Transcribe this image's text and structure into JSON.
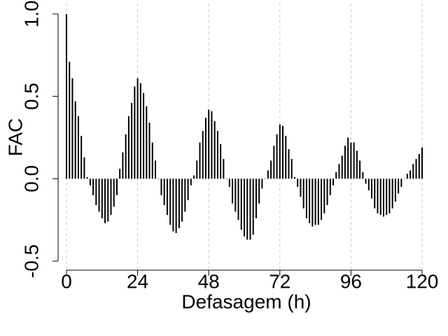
{
  "chart_data": {
    "type": "bar",
    "x_label": "Defasagem (h)",
    "y_label": "FAC",
    "color": "#000000",
    "grid": true,
    "x": [
      0,
      1,
      2,
      3,
      4,
      5,
      6,
      7,
      8,
      9,
      10,
      11,
      12,
      13,
      14,
      15,
      16,
      17,
      18,
      19,
      20,
      21,
      22,
      23,
      24,
      25,
      26,
      27,
      28,
      29,
      30,
      31,
      32,
      33,
      34,
      35,
      36,
      37,
      38,
      39,
      40,
      41,
      42,
      43,
      44,
      45,
      46,
      47,
      48,
      49,
      50,
      51,
      52,
      53,
      54,
      55,
      56,
      57,
      58,
      59,
      60,
      61,
      62,
      63,
      64,
      65,
      66,
      67,
      68,
      69,
      70,
      71,
      72,
      73,
      74,
      75,
      76,
      77,
      78,
      79,
      80,
      81,
      82,
      83,
      84,
      85,
      86,
      87,
      88,
      89,
      90,
      91,
      92,
      93,
      94,
      95,
      96,
      97,
      98,
      99,
      100,
      101,
      102,
      103,
      104,
      105,
      106,
      107,
      108,
      109,
      110,
      111,
      112,
      113,
      114,
      115,
      116,
      117,
      118,
      119,
      120
    ],
    "values": [
      1.0,
      0.71,
      0.61,
      0.47,
      0.38,
      0.26,
      0.13,
      0.01,
      -0.04,
      -0.1,
      -0.16,
      -0.2,
      -0.24,
      -0.27,
      -0.26,
      -0.22,
      -0.17,
      -0.1,
      0.06,
      0.16,
      0.27,
      0.38,
      0.46,
      0.56,
      0.61,
      0.58,
      0.52,
      0.44,
      0.34,
      0.22,
      0.11,
      0.0,
      -0.1,
      -0.16,
      -0.22,
      -0.28,
      -0.32,
      -0.33,
      -0.3,
      -0.26,
      -0.2,
      -0.13,
      -0.04,
      0.02,
      0.11,
      0.22,
      0.29,
      0.37,
      0.42,
      0.41,
      0.35,
      0.29,
      0.21,
      0.12,
      0.0,
      -0.05,
      -0.15,
      -0.2,
      -0.25,
      -0.31,
      -0.35,
      -0.37,
      -0.37,
      -0.34,
      -0.24,
      -0.15,
      -0.06,
      0.0,
      0.05,
      0.11,
      0.2,
      0.27,
      0.33,
      0.32,
      0.26,
      0.18,
      0.12,
      0.01,
      -0.05,
      -0.11,
      -0.18,
      -0.24,
      -0.27,
      -0.29,
      -0.28,
      -0.28,
      -0.25,
      -0.21,
      -0.16,
      -0.1,
      -0.04,
      0.04,
      0.09,
      0.14,
      0.2,
      0.25,
      0.22,
      0.22,
      0.17,
      0.11,
      0.04,
      -0.03,
      -0.07,
      -0.12,
      -0.18,
      -0.21,
      -0.22,
      -0.23,
      -0.22,
      -0.21,
      -0.18,
      -0.14,
      -0.09,
      -0.05,
      0.0,
      0.03,
      0.05,
      0.09,
      0.12,
      0.15,
      0.19
    ],
    "xlim": [
      0,
      120
    ],
    "xticks": [
      0,
      24,
      48,
      72,
      96,
      120
    ],
    "ylim": [
      -0.5,
      1.0
    ],
    "yticks": [
      {
        "value": -0.5,
        "label": "-0.5"
      },
      {
        "value": 0,
        "label": "0.0"
      },
      {
        "value": 0.5,
        "label": "0.5"
      },
      {
        "value": 1,
        "label": "1.0"
      }
    ]
  }
}
